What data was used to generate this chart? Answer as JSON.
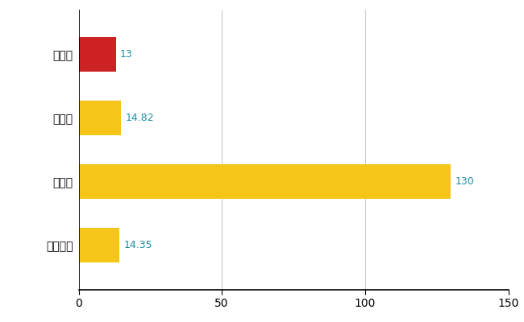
{
  "categories": [
    "見沼区",
    "県平均",
    "県最大",
    "全国平均"
  ],
  "values": [
    13,
    14.82,
    130,
    14.35
  ],
  "bar_colors": [
    "#cc2222",
    "#f5c518",
    "#f5c518",
    "#f5c518"
  ],
  "value_labels": [
    "13",
    "14.82",
    "130",
    "14.35"
  ],
  "value_label_color": "#1a8fa0",
  "xlim": [
    0,
    150
  ],
  "xticks": [
    0,
    50,
    100,
    150
  ],
  "grid_color": "#cccccc",
  "background_color": "#ffffff",
  "bar_height": 0.55
}
